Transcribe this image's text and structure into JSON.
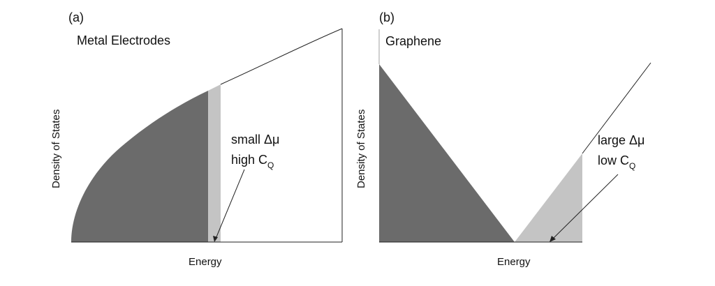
{
  "panels": {
    "a": {
      "label": "(a)",
      "title": "Metal Electrodes",
      "ylabel": "Density of States",
      "xlabel": "Energy",
      "note_line1": "small Δμ",
      "note_line2_main": "high C",
      "note_line2_sub": "Q"
    },
    "b": {
      "label": "(b)",
      "title": "Graphene",
      "ylabel": "Density of States",
      "xlabel": "Energy",
      "note_line1": "large Δμ",
      "note_line2_main": "low C",
      "note_line2_sub": "Q"
    }
  },
  "colors": {
    "filled_states": "#6b6b6b",
    "delta_band": "#c4c4c4",
    "outline": "#222222"
  }
}
